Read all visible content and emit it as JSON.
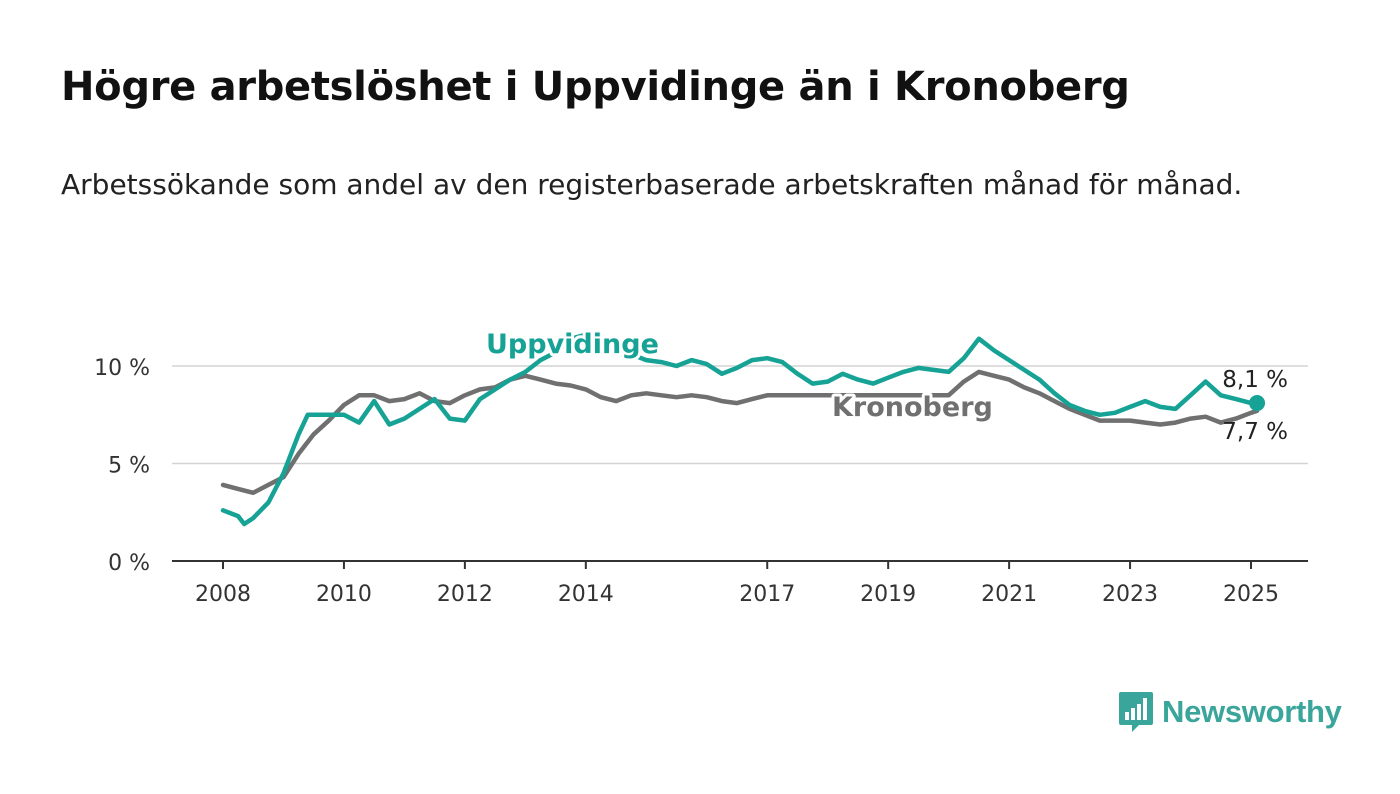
{
  "title": "Högre arbetslöshet i Uppvidinge än i Kronoberg",
  "subtitle": "Arbetssökande som andel av den registerbaserade arbetskraften månad för månad.",
  "brand": {
    "name": "Newsworthy",
    "color": "#3aa59a",
    "icon": "bar-chart-speech-bubble-icon"
  },
  "chart_data": {
    "type": "line",
    "x_unit": "year",
    "ylim": [
      0,
      12
    ],
    "y_ticks": [
      0,
      5,
      10
    ],
    "y_tick_labels": [
      "0 %",
      "5 %",
      "10 %"
    ],
    "x_ticks": [
      2008,
      2010,
      2012,
      2014,
      2017,
      2019,
      2021,
      2023,
      2025
    ],
    "x_tick_labels": [
      "2008",
      "2010",
      "2012",
      "2014",
      "2017",
      "2019",
      "2021",
      "2023",
      "2025"
    ],
    "grid": true,
    "series": [
      {
        "name": "Kronoberg",
        "color": "#707070",
        "end_label": "7,7 %",
        "points": [
          [
            2008.0,
            3.9
          ],
          [
            2008.25,
            3.7
          ],
          [
            2008.5,
            3.5
          ],
          [
            2008.75,
            3.9
          ],
          [
            2009.0,
            4.3
          ],
          [
            2009.25,
            5.5
          ],
          [
            2009.5,
            6.5
          ],
          [
            2009.75,
            7.2
          ],
          [
            2010.0,
            8.0
          ],
          [
            2010.25,
            8.5
          ],
          [
            2010.5,
            8.5
          ],
          [
            2010.75,
            8.2
          ],
          [
            2011.0,
            8.3
          ],
          [
            2011.25,
            8.6
          ],
          [
            2011.5,
            8.2
          ],
          [
            2011.75,
            8.1
          ],
          [
            2012.0,
            8.5
          ],
          [
            2012.25,
            8.8
          ],
          [
            2012.5,
            8.9
          ],
          [
            2012.75,
            9.3
          ],
          [
            2013.0,
            9.5
          ],
          [
            2013.25,
            9.3
          ],
          [
            2013.5,
            9.1
          ],
          [
            2013.75,
            9.0
          ],
          [
            2014.0,
            8.8
          ],
          [
            2014.25,
            8.4
          ],
          [
            2014.5,
            8.2
          ],
          [
            2014.75,
            8.5
          ],
          [
            2015.0,
            8.6
          ],
          [
            2015.25,
            8.5
          ],
          [
            2015.5,
            8.4
          ],
          [
            2015.75,
            8.5
          ],
          [
            2016.0,
            8.4
          ],
          [
            2016.25,
            8.2
          ],
          [
            2016.5,
            8.1
          ],
          [
            2016.75,
            8.3
          ],
          [
            2017.0,
            8.5
          ],
          [
            2017.25,
            8.5
          ],
          [
            2017.5,
            8.5
          ],
          [
            2017.75,
            8.5
          ],
          [
            2018.0,
            8.5
          ],
          [
            2019.75,
            8.5
          ],
          [
            2020.0,
            8.5
          ],
          [
            2020.25,
            9.2
          ],
          [
            2020.5,
            9.7
          ],
          [
            2020.75,
            9.5
          ],
          [
            2021.0,
            9.3
          ],
          [
            2021.25,
            8.9
          ],
          [
            2021.5,
            8.6
          ],
          [
            2021.75,
            8.2
          ],
          [
            2022.0,
            7.8
          ],
          [
            2022.25,
            7.5
          ],
          [
            2022.5,
            7.2
          ],
          [
            2022.75,
            7.2
          ],
          [
            2023.0,
            7.2
          ],
          [
            2023.25,
            7.1
          ],
          [
            2023.5,
            7.0
          ],
          [
            2023.75,
            7.1
          ],
          [
            2024.0,
            7.3
          ],
          [
            2024.25,
            7.4
          ],
          [
            2024.5,
            7.1
          ],
          [
            2024.75,
            7.3
          ],
          [
            2025.0,
            7.6
          ],
          [
            2025.1,
            7.7
          ]
        ]
      },
      {
        "name": "Uppvidinge",
        "color": "#17a296",
        "end_label": "8,1 %",
        "points": [
          [
            2008.0,
            2.6
          ],
          [
            2008.25,
            2.3
          ],
          [
            2008.35,
            1.9
          ],
          [
            2008.5,
            2.2
          ],
          [
            2008.75,
            3.0
          ],
          [
            2009.0,
            4.5
          ],
          [
            2009.25,
            6.5
          ],
          [
            2009.4,
            7.5
          ],
          [
            2009.75,
            7.5
          ],
          [
            2010.0,
            7.5
          ],
          [
            2010.25,
            7.1
          ],
          [
            2010.5,
            8.2
          ],
          [
            2010.75,
            7.0
          ],
          [
            2011.0,
            7.3
          ],
          [
            2011.25,
            7.8
          ],
          [
            2011.5,
            8.3
          ],
          [
            2011.75,
            7.3
          ],
          [
            2012.0,
            7.2
          ],
          [
            2012.25,
            8.3
          ],
          [
            2012.5,
            8.8
          ],
          [
            2012.75,
            9.3
          ],
          [
            2013.0,
            9.7
          ],
          [
            2013.25,
            10.3
          ],
          [
            2013.5,
            10.7
          ],
          [
            2013.75,
            11.4
          ],
          [
            2014.0,
            11.6
          ],
          [
            2014.25,
            11.2
          ],
          [
            2014.5,
            10.8
          ],
          [
            2014.75,
            10.6
          ],
          [
            2015.0,
            10.3
          ],
          [
            2015.25,
            10.2
          ],
          [
            2015.5,
            10.0
          ],
          [
            2015.75,
            10.3
          ],
          [
            2016.0,
            10.1
          ],
          [
            2016.25,
            9.6
          ],
          [
            2016.5,
            9.9
          ],
          [
            2016.75,
            10.3
          ],
          [
            2017.0,
            10.4
          ],
          [
            2017.25,
            10.2
          ],
          [
            2017.5,
            9.6
          ],
          [
            2017.75,
            9.1
          ],
          [
            2018.0,
            9.2
          ],
          [
            2018.25,
            9.6
          ],
          [
            2018.5,
            9.3
          ],
          [
            2018.75,
            9.1
          ],
          [
            2019.0,
            9.4
          ],
          [
            2019.25,
            9.7
          ],
          [
            2019.5,
            9.9
          ],
          [
            2019.75,
            9.8
          ],
          [
            2020.0,
            9.7
          ],
          [
            2020.25,
            10.4
          ],
          [
            2020.5,
            11.4
          ],
          [
            2020.75,
            10.8
          ],
          [
            2021.0,
            10.3
          ],
          [
            2021.25,
            9.8
          ],
          [
            2021.5,
            9.3
          ],
          [
            2021.75,
            8.6
          ],
          [
            2022.0,
            8.0
          ],
          [
            2022.25,
            7.7
          ],
          [
            2022.5,
            7.5
          ],
          [
            2022.75,
            7.6
          ],
          [
            2023.0,
            7.9
          ],
          [
            2023.25,
            8.2
          ],
          [
            2023.5,
            7.9
          ],
          [
            2023.75,
            7.8
          ],
          [
            2024.0,
            8.5
          ],
          [
            2024.25,
            9.2
          ],
          [
            2024.5,
            8.5
          ],
          [
            2024.75,
            8.3
          ],
          [
            2025.0,
            8.1
          ],
          [
            2025.1,
            8.1
          ]
        ]
      }
    ]
  }
}
